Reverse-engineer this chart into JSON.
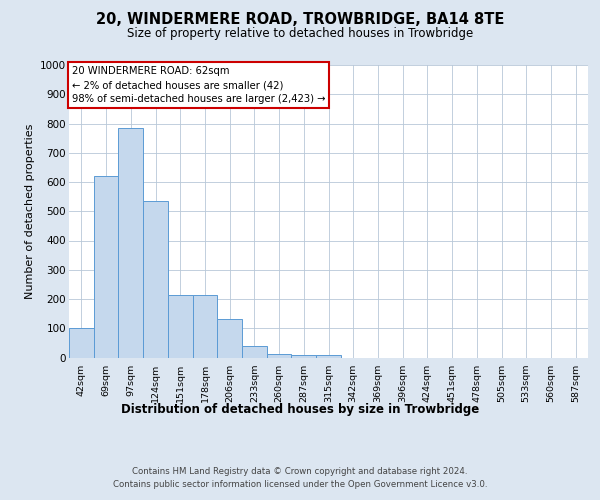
{
  "title": "20, WINDERMERE ROAD, TROWBRIDGE, BA14 8TE",
  "subtitle": "Size of property relative to detached houses in Trowbridge",
  "xlabel": "Distribution of detached houses by size in Trowbridge",
  "ylabel": "Number of detached properties",
  "bar_color": "#c5d8ed",
  "bar_edge_color": "#5b9bd5",
  "background_color": "#dce6f1",
  "plot_bg_color": "#ffffff",
  "grid_color": "#b8c8d8",
  "categories": [
    "42sqm",
    "69sqm",
    "97sqm",
    "124sqm",
    "151sqm",
    "178sqm",
    "206sqm",
    "233sqm",
    "260sqm",
    "287sqm",
    "315sqm",
    "342sqm",
    "369sqm",
    "396sqm",
    "424sqm",
    "451sqm",
    "478sqm",
    "505sqm",
    "533sqm",
    "560sqm",
    "587sqm"
  ],
  "values": [
    100,
    620,
    785,
    535,
    215,
    215,
    130,
    40,
    13,
    8,
    8,
    0,
    0,
    0,
    0,
    0,
    0,
    0,
    0,
    0,
    0
  ],
  "ylim": [
    0,
    1000
  ],
  "yticks": [
    0,
    100,
    200,
    300,
    400,
    500,
    600,
    700,
    800,
    900,
    1000
  ],
  "annotation_text": "20 WINDERMERE ROAD: 62sqm\n← 2% of detached houses are smaller (42)\n98% of semi-detached houses are larger (2,423) →",
  "annotation_box_color": "#ffffff",
  "annotation_box_edge": "#cc0000",
  "footer_line1": "Contains HM Land Registry data © Crown copyright and database right 2024.",
  "footer_line2": "Contains public sector information licensed under the Open Government Licence v3.0."
}
